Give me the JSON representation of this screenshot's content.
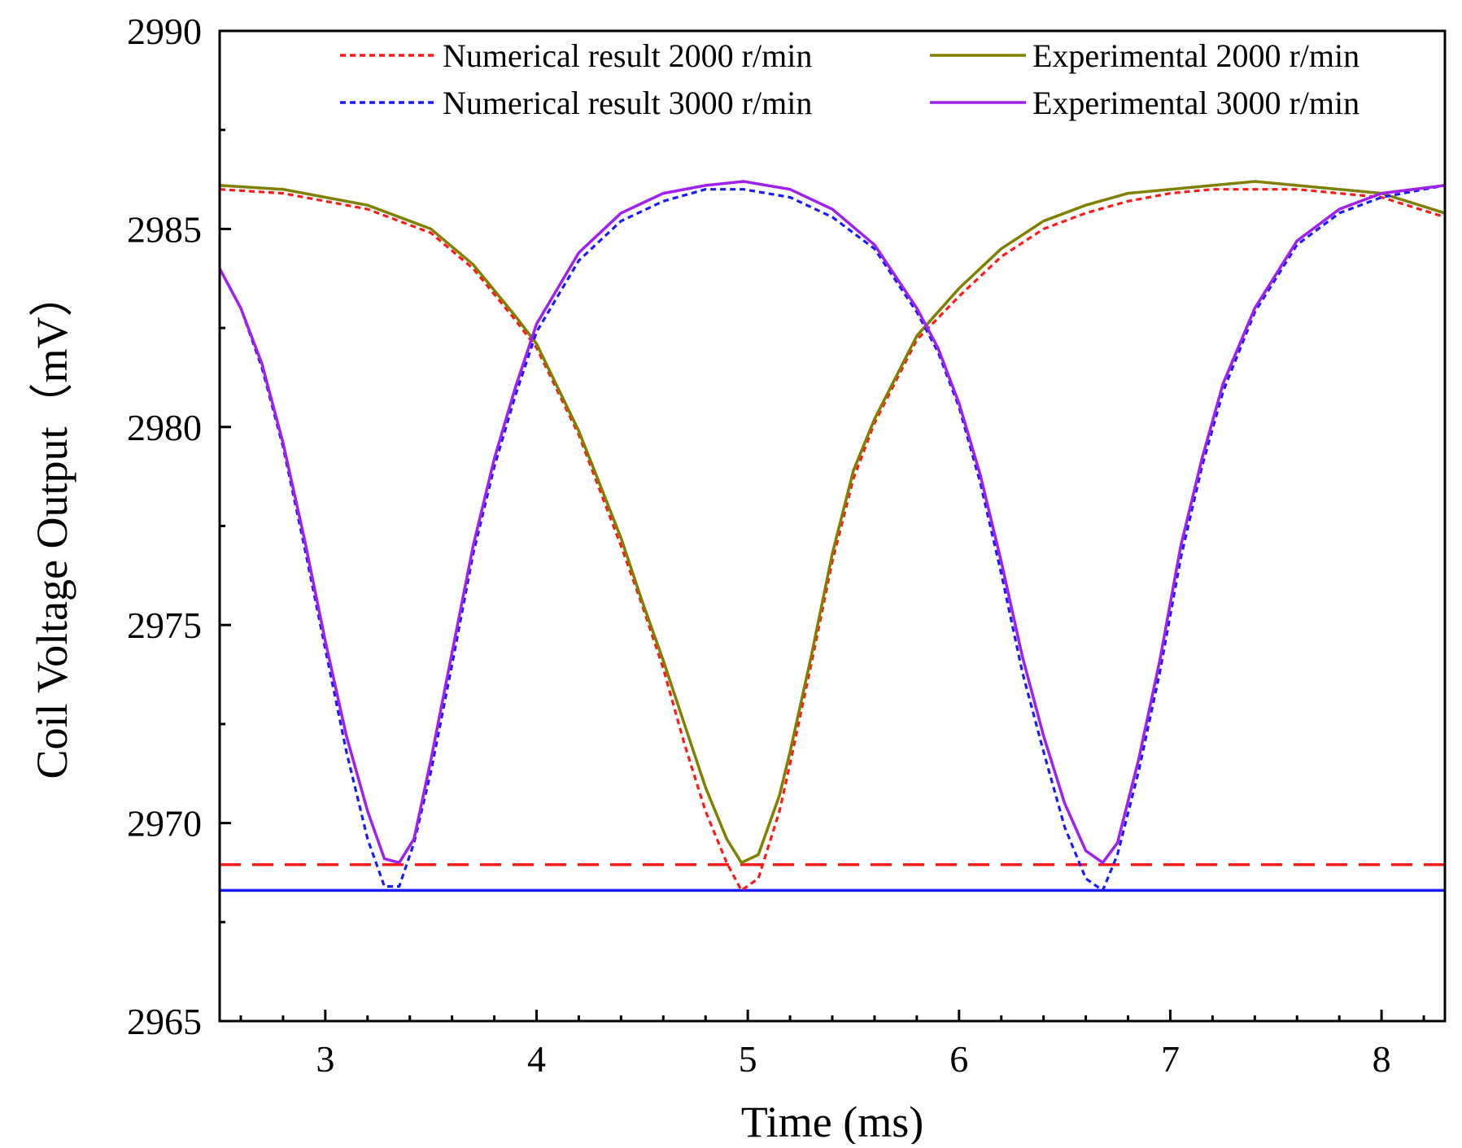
{
  "chart_data": {
    "type": "line",
    "xlabel": "Time (ms)",
    "ylabel": "Coil Voltage Output（mV）",
    "xlim": [
      2.5,
      8.3
    ],
    "ylim": [
      2965,
      2990
    ],
    "x_ticks": [
      "3",
      "4",
      "5",
      "6",
      "7",
      "8"
    ],
    "y_ticks": [
      "2965",
      "2970",
      "2975",
      "2980",
      "2985",
      "2990"
    ],
    "grid": false,
    "legend_position": "top-right",
    "series": [
      {
        "name": "Numerical result 2000 r/min",
        "style": "dotted",
        "color": "#ff1a1a",
        "x": [
          2.5,
          2.8,
          3.0,
          3.2,
          3.5,
          3.7,
          3.9,
          4.0,
          4.2,
          4.4,
          4.5,
          4.6,
          4.7,
          4.8,
          4.9,
          4.97,
          5.05,
          5.15,
          5.2,
          5.3,
          5.4,
          5.5,
          5.6,
          5.8,
          6.0,
          6.2,
          6.4,
          6.6,
          6.8,
          7.0,
          7.2,
          7.4,
          7.6,
          7.8,
          8.0,
          8.3
        ],
        "y": [
          2986.0,
          2985.9,
          2985.7,
          2985.5,
          2984.9,
          2984.0,
          2982.7,
          2982.0,
          2979.8,
          2977.0,
          2975.5,
          2973.9,
          2972.0,
          2970.3,
          2969.0,
          2968.3,
          2968.6,
          2970.3,
          2971.5,
          2974.0,
          2976.6,
          2978.7,
          2980.1,
          2982.2,
          2983.3,
          2984.3,
          2985.0,
          2985.4,
          2985.7,
          2985.9,
          2986.0,
          2986.0,
          2986.0,
          2985.9,
          2985.8,
          2985.3
        ]
      },
      {
        "name": "Experimental 2000 r/min",
        "style": "solid",
        "color": "#808000",
        "x": [
          2.5,
          2.8,
          3.0,
          3.2,
          3.5,
          3.7,
          3.9,
          4.0,
          4.2,
          4.4,
          4.5,
          4.6,
          4.7,
          4.8,
          4.9,
          4.97,
          5.05,
          5.15,
          5.2,
          5.3,
          5.4,
          5.5,
          5.6,
          5.8,
          6.0,
          6.2,
          6.4,
          6.6,
          6.8,
          7.0,
          7.2,
          7.4,
          7.6,
          7.8,
          8.0,
          8.3
        ],
        "y": [
          2986.1,
          2986.0,
          2985.8,
          2985.6,
          2985.0,
          2984.1,
          2982.8,
          2982.1,
          2979.9,
          2977.2,
          2975.6,
          2974.1,
          2972.5,
          2970.9,
          2969.6,
          2969.0,
          2969.2,
          2970.7,
          2971.8,
          2974.2,
          2976.8,
          2978.9,
          2980.2,
          2982.3,
          2983.5,
          2984.5,
          2985.2,
          2985.6,
          2985.9,
          2986.0,
          2986.1,
          2986.2,
          2986.1,
          2986.0,
          2985.9,
          2985.4
        ]
      },
      {
        "name": "Numerical result 3000 r/min",
        "style": "dotted",
        "color": "#1a1aff",
        "x": [
          2.5,
          2.6,
          2.7,
          2.8,
          2.9,
          3.0,
          3.1,
          3.2,
          3.28,
          3.35,
          3.42,
          3.5,
          3.6,
          3.7,
          3.8,
          3.9,
          4.0,
          4.2,
          4.4,
          4.6,
          4.8,
          4.98,
          5.2,
          5.4,
          5.6,
          5.8,
          5.9,
          6.0,
          6.1,
          6.2,
          6.3,
          6.4,
          6.5,
          6.6,
          6.68,
          6.75,
          6.85,
          6.95,
          7.05,
          7.15,
          7.25,
          7.4,
          7.6,
          7.8,
          8.0,
          8.3
        ],
        "y": [
          2984.0,
          2983.0,
          2981.5,
          2979.5,
          2977.0,
          2974.4,
          2971.8,
          2969.6,
          2968.4,
          2968.4,
          2969.5,
          2971.3,
          2974.0,
          2976.8,
          2979.0,
          2980.8,
          2982.4,
          2984.2,
          2985.2,
          2985.7,
          2986.0,
          2986.0,
          2985.8,
          2985.3,
          2984.5,
          2982.9,
          2981.9,
          2980.5,
          2978.6,
          2976.3,
          2973.8,
          2971.8,
          2969.9,
          2968.6,
          2968.3,
          2969.2,
          2971.3,
          2973.8,
          2976.7,
          2979.0,
          2980.9,
          2982.9,
          2984.6,
          2985.4,
          2985.8,
          2986.1
        ]
      },
      {
        "name": "Experimental 3000 r/min",
        "style": "solid",
        "color": "#a020f0",
        "x": [
          2.5,
          2.6,
          2.7,
          2.8,
          2.9,
          3.0,
          3.1,
          3.2,
          3.28,
          3.35,
          3.42,
          3.5,
          3.6,
          3.7,
          3.8,
          3.9,
          4.0,
          4.2,
          4.4,
          4.6,
          4.8,
          4.98,
          5.2,
          5.4,
          5.6,
          5.8,
          5.9,
          6.0,
          6.1,
          6.2,
          6.3,
          6.4,
          6.5,
          6.6,
          6.68,
          6.75,
          6.85,
          6.95,
          7.05,
          7.15,
          7.25,
          7.4,
          7.6,
          7.8,
          8.0,
          8.3
        ],
        "y": [
          2984.0,
          2983.0,
          2981.6,
          2979.6,
          2977.2,
          2974.6,
          2972.2,
          2970.3,
          2969.1,
          2969.0,
          2969.6,
          2971.6,
          2974.3,
          2977.0,
          2979.2,
          2981.0,
          2982.6,
          2984.4,
          2985.4,
          2985.9,
          2986.1,
          2986.2,
          2986.0,
          2985.5,
          2984.6,
          2983.0,
          2982.0,
          2980.6,
          2978.8,
          2976.6,
          2974.2,
          2972.2,
          2970.5,
          2969.3,
          2969.0,
          2969.5,
          2971.6,
          2974.1,
          2977.0,
          2979.2,
          2981.1,
          2983.0,
          2984.7,
          2985.5,
          2985.9,
          2986.1
        ]
      }
    ],
    "reference_lines": [
      {
        "y": 2968.95,
        "style": "dashed",
        "color": "#ff1a1a"
      },
      {
        "y": 2968.3,
        "style": "solid",
        "color": "#1a1aff"
      }
    ]
  }
}
